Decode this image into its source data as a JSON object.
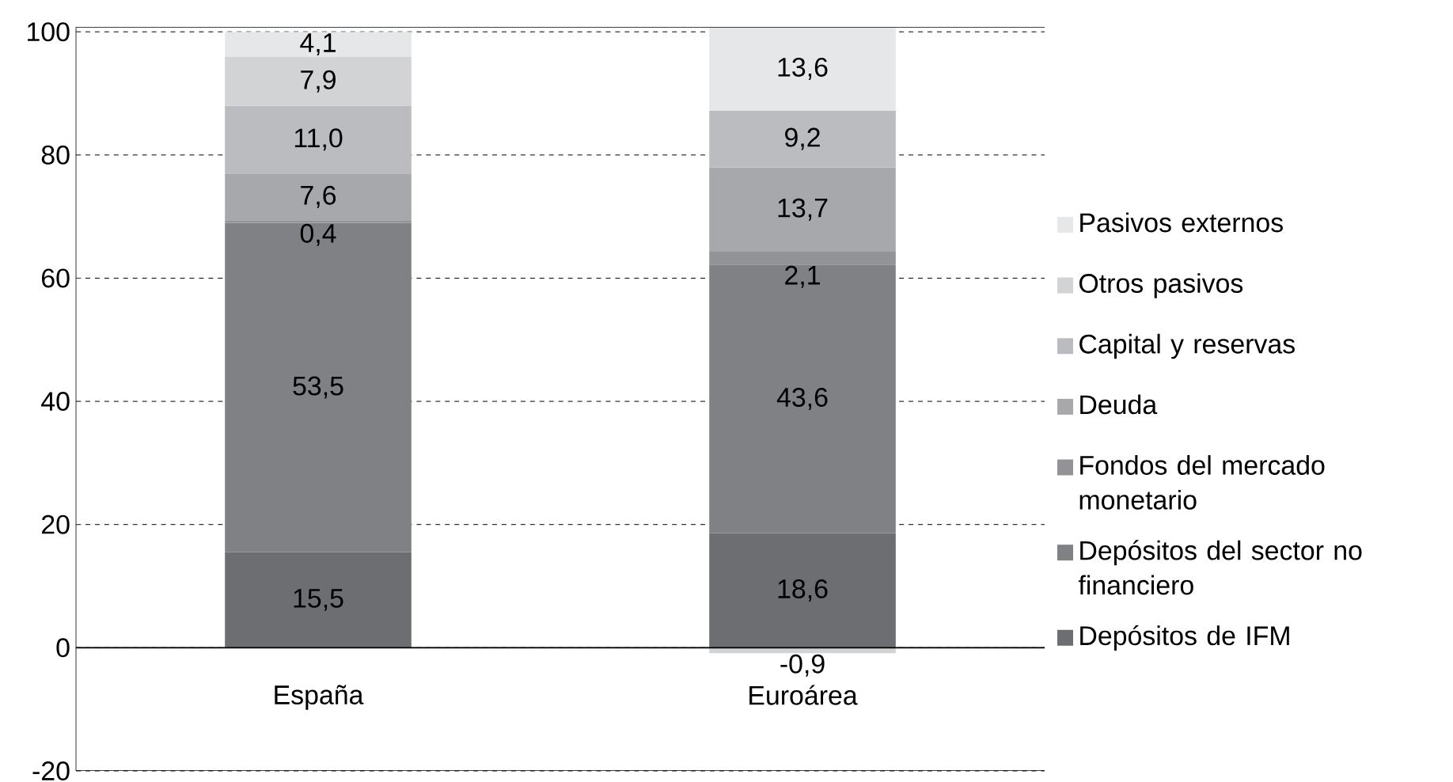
{
  "chart_data": {
    "type": "bar",
    "stacked": true,
    "categories": [
      "España",
      "Euroárea"
    ],
    "series": [
      {
        "name": "Depósitos de IFM",
        "color": "#6d6e72",
        "values": [
          15.5,
          18.6
        ],
        "value_labels": [
          "15,5",
          "18,6"
        ]
      },
      {
        "name": "Depósitos del sector no financiero",
        "color": "#808185",
        "values": [
          53.5,
          43.6
        ],
        "value_labels": [
          "53,5",
          "43,6"
        ]
      },
      {
        "name": "Fondos del mercado monetario",
        "color": "#929397",
        "values": [
          0.4,
          2.1
        ],
        "value_labels": [
          "0,4",
          "2,1"
        ]
      },
      {
        "name": "Deuda",
        "color": "#a7a8ab",
        "values": [
          7.6,
          13.7
        ],
        "value_labels": [
          "7,6",
          "13,7"
        ]
      },
      {
        "name": "Capital y reservas",
        "color": "#bbbcbf",
        "values": [
          11.0,
          9.2
        ],
        "value_labels": [
          "11,0",
          "9,2"
        ]
      },
      {
        "name": "Otros pasivos",
        "color": "#d2d3d5",
        "values": [
          7.9,
          -0.9
        ],
        "value_labels": [
          "7,9",
          "-0,9"
        ]
      },
      {
        "name": "Pasivos externos",
        "color": "#e6e7e8",
        "values": [
          4.1,
          13.6
        ],
        "value_labels": [
          "4,1",
          "13,6"
        ]
      }
    ],
    "ylim": [
      -20,
      100.8
    ],
    "yticks": [
      -20,
      0,
      20,
      40,
      60,
      80,
      100
    ],
    "grid": "y",
    "legend": "right"
  }
}
